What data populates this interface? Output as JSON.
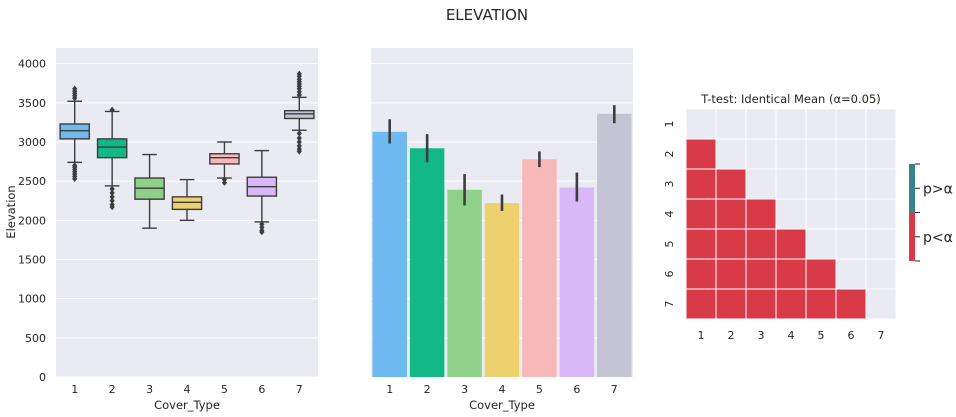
{
  "figure": {
    "title": "ELEVATION"
  },
  "palette": [
    "#6ebaf0",
    "#12b886",
    "#8fd18a",
    "#edd16f",
    "#f6b8b8",
    "#d8b8f6",
    "#c4c4d4"
  ],
  "chart_data": [
    {
      "type": "box",
      "xlabel": "Cover_Type",
      "ylabel": "Elevation",
      "categories": [
        "1",
        "2",
        "3",
        "4",
        "5",
        "6",
        "7"
      ],
      "ylim": [
        0,
        4200
      ],
      "yticks": [
        0,
        500,
        1000,
        1500,
        2000,
        2500,
        3000,
        3500,
        4000
      ],
      "grid": true,
      "boxes": [
        {
          "q1": 3040,
          "median": 3145,
          "q3": 3230,
          "wlo": 2740,
          "whi": 3520,
          "outliers": [
            2700,
            2680,
            2650,
            2620,
            2590,
            2560,
            2530,
            3560,
            3590,
            3620,
            3650,
            3680
          ]
        },
        {
          "q1": 2800,
          "median": 2935,
          "q3": 3040,
          "wlo": 2440,
          "whi": 3390,
          "outliers": [
            2400,
            2350,
            2300,
            2250,
            2200,
            2170,
            3410
          ]
        },
        {
          "q1": 2270,
          "median": 2410,
          "q3": 2540,
          "wlo": 1900,
          "whi": 2840,
          "outliers": []
        },
        {
          "q1": 2140,
          "median": 2230,
          "q3": 2300,
          "wlo": 2000,
          "whi": 2520,
          "outliers": []
        },
        {
          "q1": 2720,
          "median": 2800,
          "q3": 2850,
          "wlo": 2540,
          "whi": 3000,
          "outliers": [
            2520,
            2480
          ]
        },
        {
          "q1": 2310,
          "median": 2430,
          "q3": 2550,
          "wlo": 1980,
          "whi": 2890,
          "outliers": [
            1950,
            1910,
            1870,
            1850
          ]
        },
        {
          "q1": 3300,
          "median": 3360,
          "q3": 3400,
          "wlo": 3150,
          "whi": 3570,
          "outliers": [
            3110,
            3050,
            3000,
            2950,
            2910,
            2880,
            3600,
            3640,
            3680,
            3710,
            3740,
            3770,
            3800,
            3840,
            3870
          ]
        }
      ]
    },
    {
      "type": "bar",
      "xlabel": "Cover_Type",
      "categories": [
        "1",
        "2",
        "3",
        "4",
        "5",
        "6",
        "7"
      ],
      "values": [
        3130,
        2920,
        2390,
        2220,
        2780,
        2420,
        3360
      ],
      "err_low": [
        2980,
        2740,
        2190,
        2120,
        2680,
        2240,
        3240
      ],
      "err_high": [
        3290,
        3100,
        2590,
        2330,
        2880,
        2610,
        3470
      ],
      "ylim": [
        0,
        4200
      ],
      "gridlines": [
        500,
        1000,
        1500,
        2000,
        2500,
        3000,
        3500,
        4000
      ]
    },
    {
      "type": "heatmap",
      "title": "T-test: Identical Mean (α=0.05)",
      "x_labels": [
        "1",
        "2",
        "3",
        "4",
        "5",
        "6",
        "7"
      ],
      "y_labels": [
        "1",
        "2",
        "3",
        "4",
        "5",
        "6",
        "7"
      ],
      "matrix": [
        [
          0,
          0,
          0,
          0,
          0,
          0,
          0
        ],
        [
          1,
          0,
          0,
          0,
          0,
          0,
          0
        ],
        [
          1,
          1,
          0,
          0,
          0,
          0,
          0
        ],
        [
          1,
          1,
          1,
          0,
          0,
          0,
          0
        ],
        [
          1,
          1,
          1,
          1,
          0,
          0,
          0
        ],
        [
          1,
          1,
          1,
          1,
          1,
          0,
          0
        ],
        [
          1,
          1,
          1,
          1,
          1,
          1,
          0
        ]
      ],
      "colors": {
        "empty": "#eaeaf2",
        "significant": "#d93a48",
        "not_significant": "#3b8289"
      },
      "legend": [
        "p>α",
        "p<α"
      ]
    }
  ]
}
